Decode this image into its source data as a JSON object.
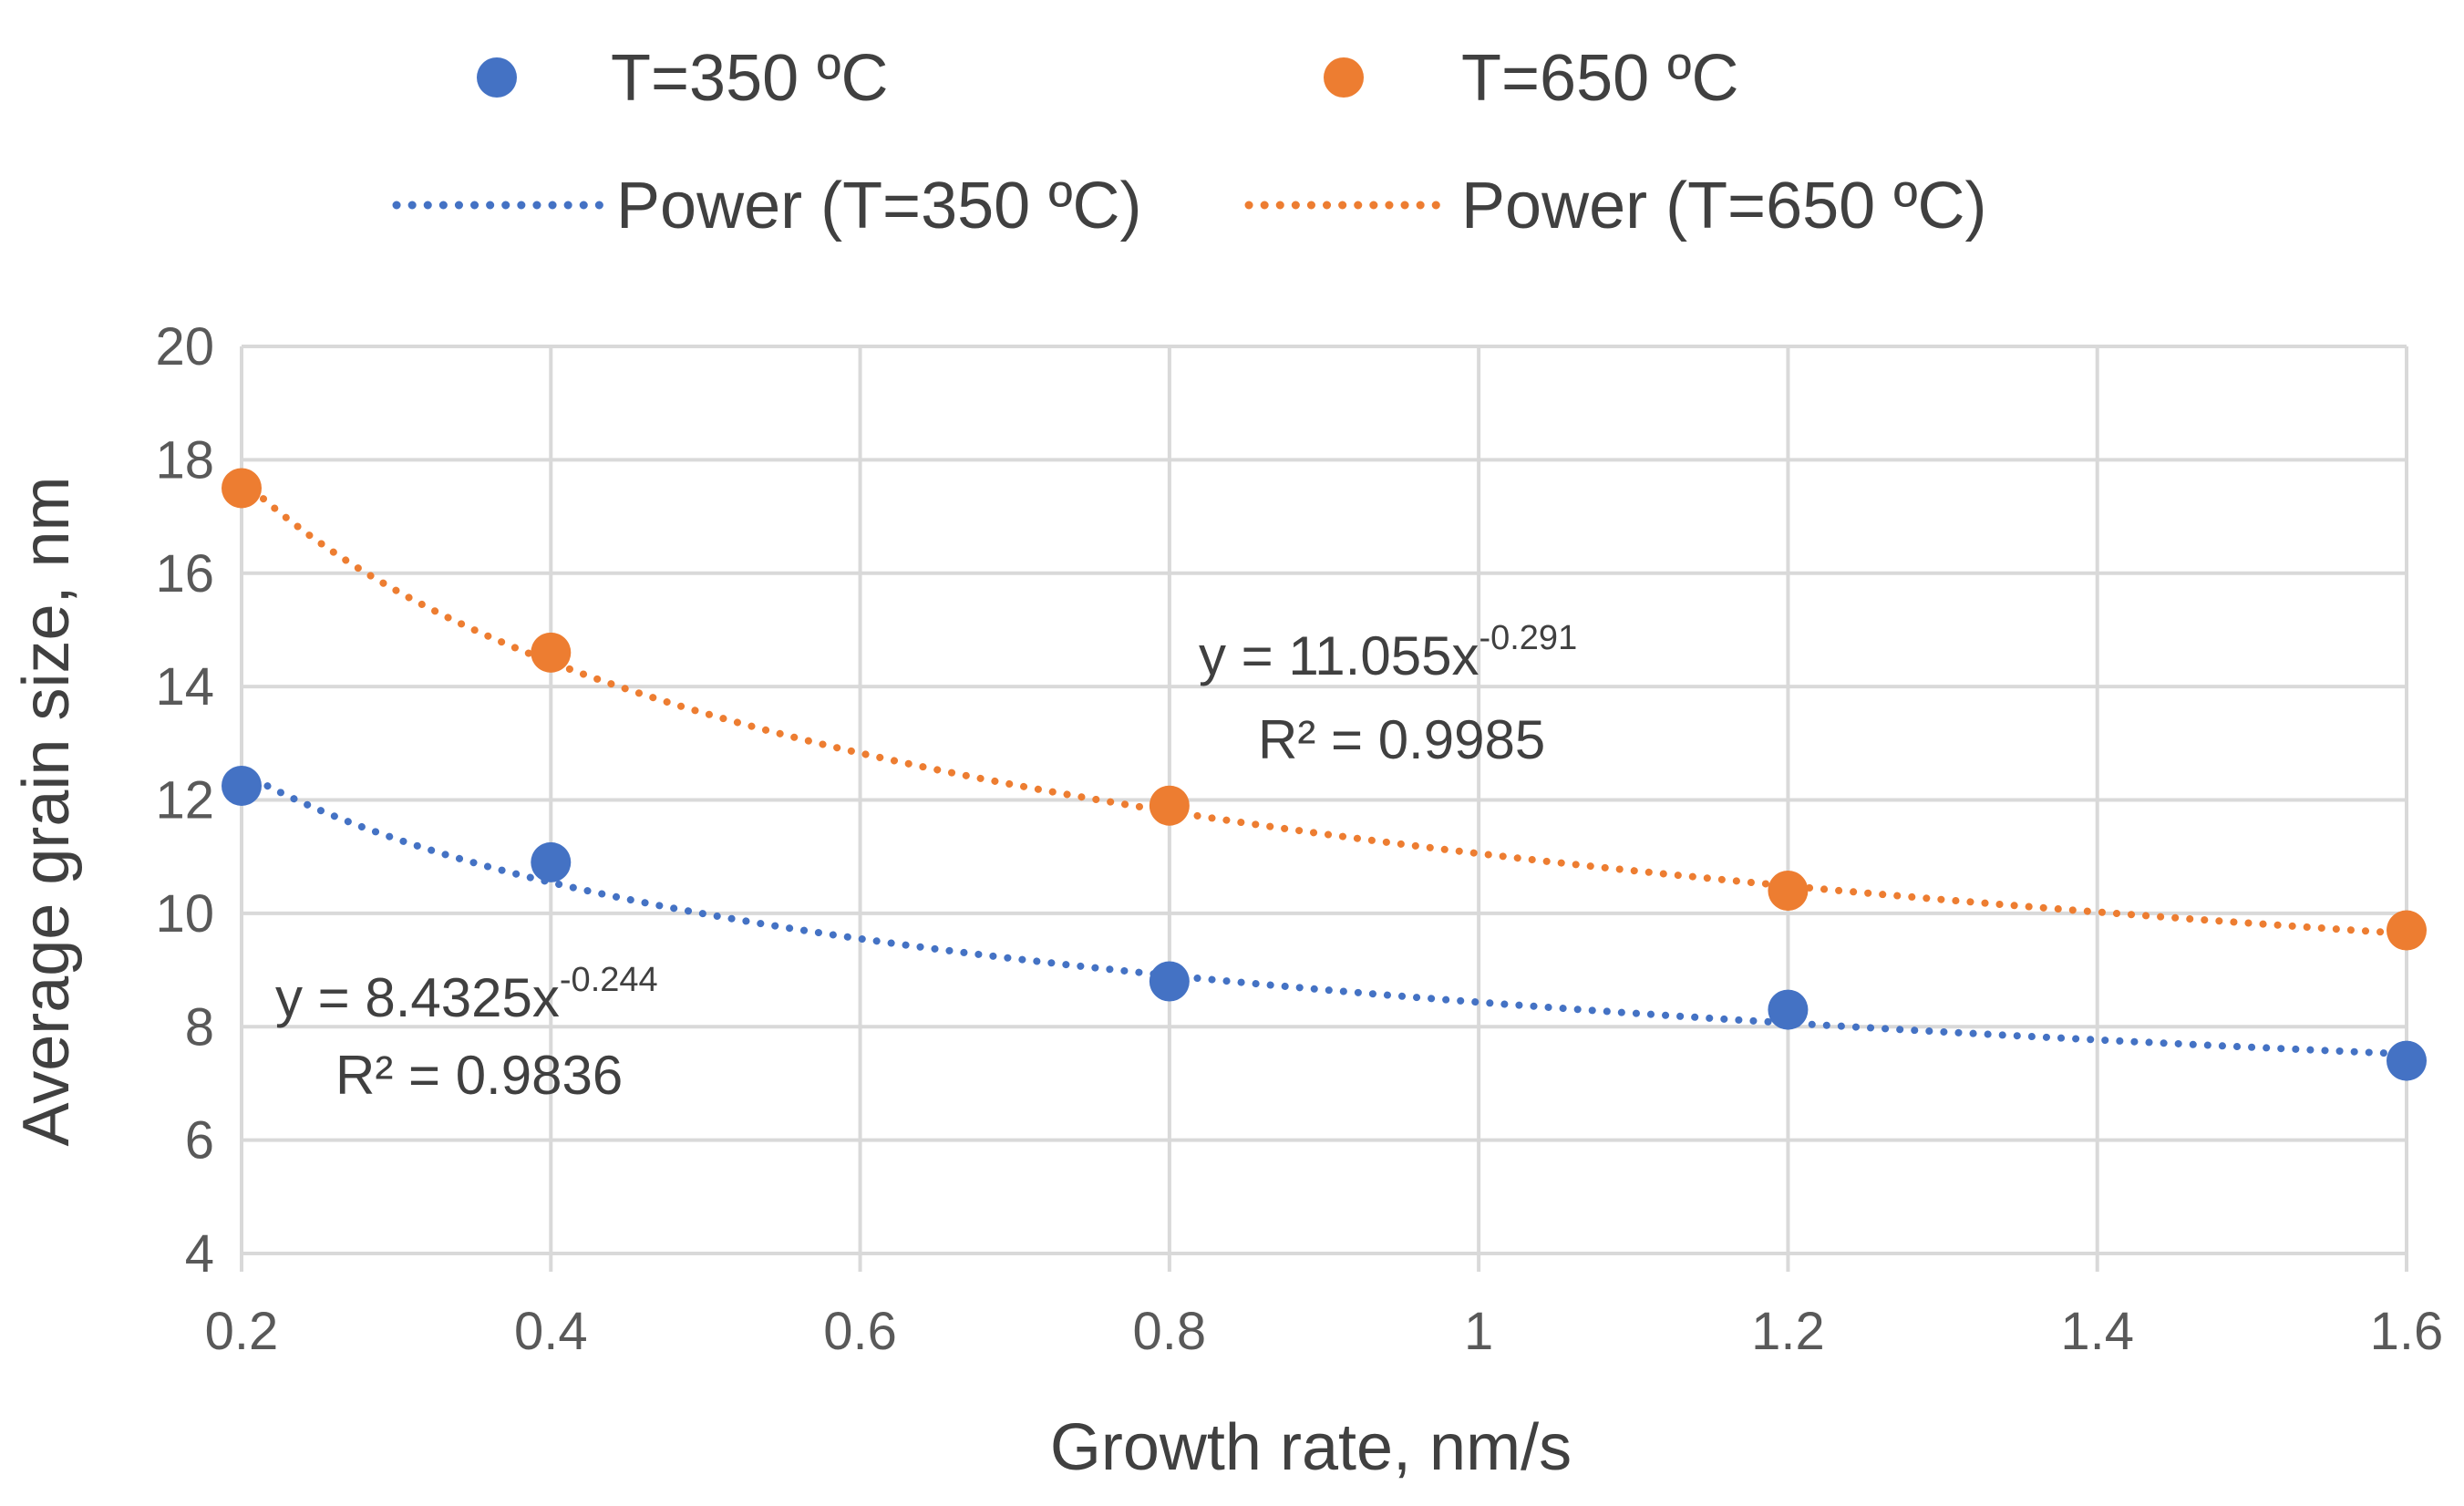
{
  "chart_data": {
    "type": "scatter",
    "title": "",
    "xlabel": "Growth rate, nm/s",
    "ylabel": "Average grain size, nm",
    "xlim": [
      0.2,
      1.6
    ],
    "ylim": [
      4,
      20
    ],
    "xticks": [
      0.2,
      0.4,
      0.6,
      0.8,
      1.0,
      1.2,
      1.4,
      1.6
    ],
    "xtick_labels": [
      "0.2",
      "0.4",
      "0.6",
      "0.8",
      "1",
      "1.2",
      "1.4",
      "1.6"
    ],
    "yticks": [
      4,
      6,
      8,
      10,
      12,
      14,
      16,
      18,
      20
    ],
    "ytick_labels": [
      "4",
      "6",
      "8",
      "10",
      "12",
      "14",
      "16",
      "18",
      "20"
    ],
    "grid": true,
    "legend_position": "top",
    "series": [
      {
        "name": "T=350 ºC",
        "color": "#4472C4",
        "x": [
          0.2,
          0.4,
          0.8,
          1.2,
          1.6
        ],
        "y": [
          12.25,
          10.9,
          8.8,
          8.3,
          7.4
        ],
        "trend": {
          "name": "Power (T=350 ºC)",
          "type": "power",
          "a": 8.4325,
          "b": -0.244,
          "equation_prefix": "y = 8.4325x",
          "equation_exponent": "-0.244",
          "r2_text": "R² = 0.9836"
        }
      },
      {
        "name": "T=650 ºC",
        "color": "#ED7D31",
        "x": [
          0.2,
          0.4,
          0.8,
          1.2,
          1.6
        ],
        "y": [
          17.5,
          14.6,
          11.9,
          10.4,
          9.7
        ],
        "trend": {
          "name": "Power (T=650 ºC)",
          "type": "power",
          "a": 11.055,
          "b": -0.291,
          "equation_prefix": "y = 11.055x",
          "equation_exponent": "-0.291",
          "r2_text": "R² = 0.9985"
        }
      }
    ]
  }
}
